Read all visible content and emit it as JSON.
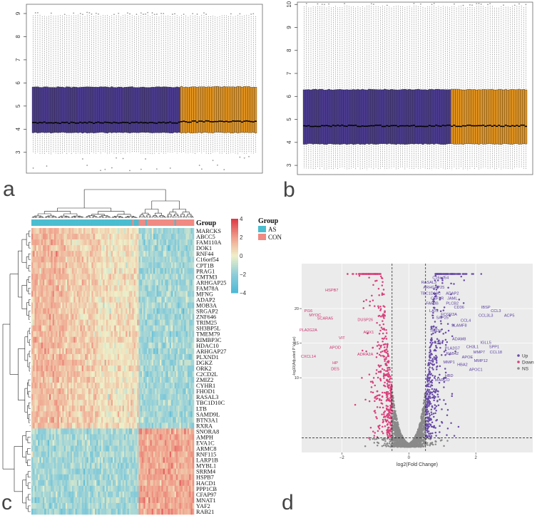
{
  "figure": {
    "panel_labels": {
      "a": "a",
      "b": "b",
      "c": "c",
      "d": "d"
    }
  },
  "chart_data": [
    {
      "id": "a",
      "type": "boxplot",
      "title": "",
      "ylim": [
        2.1,
        9.4
      ],
      "yticks": [
        3,
        4,
        5,
        6,
        7,
        8,
        9
      ],
      "groups": [
        {
          "name": "AS",
          "color": "#4a3a8c",
          "n_samples": 66,
          "median": 4.28,
          "q1": 3.85,
          "q3": 5.82,
          "whisker_low": 2.95,
          "whisker_high": 8.9
        },
        {
          "name": "CON",
          "color": "#e0921f",
          "n_samples": 34,
          "median": 4.33,
          "q1": 3.85,
          "q3": 5.83,
          "whisker_low": 2.95,
          "whisker_high": 8.9
        }
      ]
    },
    {
      "id": "b",
      "type": "boxplot",
      "title": "",
      "ylim": [
        2.6,
        10.1
      ],
      "yticks": [
        3,
        4,
        5,
        6,
        7,
        8,
        9,
        10
      ],
      "groups": [
        {
          "name": "AS",
          "color": "#4a3a8c",
          "n_samples": 66,
          "median": 4.72,
          "q1": 3.93,
          "q3": 6.3,
          "whisker_low": 2.85,
          "whisker_high": 9.9
        },
        {
          "name": "CON",
          "color": "#e0921f",
          "n_samples": 34,
          "median": 4.72,
          "q1": 3.93,
          "q3": 6.3,
          "whisker_low": 2.85,
          "whisker_high": 9.9
        }
      ]
    },
    {
      "id": "c",
      "type": "heatmap",
      "legend_title": "Group",
      "annotation_label": "Group",
      "groups": [
        {
          "name": "AS",
          "color": "#4bbdd0"
        },
        {
          "name": "CON",
          "color": "#f08a82"
        }
      ],
      "n_as": 66,
      "n_con": 34,
      "colorbar_ticks": [
        4,
        2,
        0,
        -2,
        -4
      ],
      "colorbar_range": [
        -4,
        4
      ],
      "rows_up_in_as": [
        "MARCKS",
        "ABCC5",
        "FAM110A",
        "DOK1",
        "RNF44",
        "C16orf54",
        "CPT1B",
        "PRAG1",
        "CMTM3",
        "ARHGAP25",
        "FAM78A",
        "MFNG",
        "ADAP2",
        "MOB3A",
        "SRGAP2",
        "ZNF646",
        "TRIM25",
        "SH3BP5L",
        "TMEM79",
        "RIMBP3C",
        "HDAC10",
        "ARHGAP27",
        "PLXND1",
        "DGKZ",
        "ORK2",
        "C2CD2L",
        "ZMIZ2",
        "CYHR1",
        "FHOD1",
        "RASAL3",
        "TBC1D10C",
        "LTB",
        "SAMD9L",
        "BTN3A1",
        "RXRA"
      ],
      "rows_down_in_as": [
        "SNORA8",
        "AMPH",
        "EVA1C",
        "ARMC8",
        "RNF115",
        "LARP1B",
        "MYBL1",
        "SRRM4",
        "HSPB7",
        "HACD1",
        "PPP1CB",
        "CFAP97",
        "MNAT1",
        "YAF2",
        "RAB21"
      ]
    },
    {
      "id": "d",
      "type": "scatter",
      "subtype": "volcano",
      "xlabel": "log2(Fold Change)",
      "ylabel": "-log10(Adjusted P Value)",
      "xlim": [
        -3.2,
        3.7
      ],
      "ylim": [
        -0.8,
        26.5
      ],
      "xticks": [
        -2,
        0,
        2
      ],
      "yticks": [
        10,
        15,
        20
      ],
      "fc_cutoff": [
        -0.5,
        0.5
      ],
      "p_cutoff": 1.3,
      "legend": [
        {
          "name": "Up",
          "color": "#6a4ca8"
        },
        {
          "name": "Down",
          "color": "#d8407a"
        },
        {
          "name": "NS",
          "color": "#8a8a8a"
        }
      ],
      "labels_up": [
        {
          "text": "C16orf54",
          "x": 0.95,
          "y": 24.3
        },
        {
          "text": "RASAL3",
          "x": 0.6,
          "y": 23.6
        },
        {
          "text": "ARHGAP25",
          "x": 0.75,
          "y": 22.9
        },
        {
          "text": "TBC1D10C",
          "x": 0.65,
          "y": 22.0
        },
        {
          "text": "ADAP2",
          "x": 1.3,
          "y": 22.0
        },
        {
          "text": "CSF1R",
          "x": 0.85,
          "y": 21.3
        },
        {
          "text": "JAML",
          "x": 1.3,
          "y": 21.3
        },
        {
          "text": "FAP3B",
          "x": 0.7,
          "y": 20.6
        },
        {
          "text": "PLCB2",
          "x": 1.3,
          "y": 20.6
        },
        {
          "text": "CD36",
          "x": 1.5,
          "y": 20.0
        },
        {
          "text": "IBSP",
          "x": 2.3,
          "y": 20.0
        },
        {
          "text": "CCL3",
          "x": 2.6,
          "y": 19.5
        },
        {
          "text": "LAT2",
          "x": 0.75,
          "y": 19.5
        },
        {
          "text": "ACP5",
          "x": 3.0,
          "y": 18.8
        },
        {
          "text": "CCL3L3",
          "x": 2.3,
          "y": 18.8
        },
        {
          "text": "FCGR3A",
          "x": 1.2,
          "y": 19.0
        },
        {
          "text": "SAP25",
          "x": 1.0,
          "y": 18.5
        },
        {
          "text": "CCL4",
          "x": 1.7,
          "y": 18.1
        },
        {
          "text": "SLAMF8",
          "x": 1.5,
          "y": 17.4
        },
        {
          "text": "STK",
          "x": 0.75,
          "y": 17.0
        },
        {
          "text": "TMEM",
          "x": 0.8,
          "y": 16.6
        },
        {
          "text": "ADAM8",
          "x": 1.5,
          "y": 15.4
        },
        {
          "text": "IL4I1",
          "x": 0.9,
          "y": 14.9
        },
        {
          "text": "IGLL5",
          "x": 2.3,
          "y": 14.9
        },
        {
          "text": "CH3L1",
          "x": 1.9,
          "y": 14.3
        },
        {
          "text": "SPP1",
          "x": 2.55,
          "y": 14.3
        },
        {
          "text": "PLA2G7",
          "x": 1.3,
          "y": 14.1
        },
        {
          "text": "MMP7",
          "x": 2.1,
          "y": 13.5
        },
        {
          "text": "CCL18",
          "x": 2.6,
          "y": 13.5
        },
        {
          "text": "RAB42",
          "x": 1.3,
          "y": 13.3
        },
        {
          "text": "APOE",
          "x": 1.75,
          "y": 12.8
        },
        {
          "text": "MMP12",
          "x": 2.15,
          "y": 12.3
        },
        {
          "text": "MMP1",
          "x": 1.2,
          "y": 12.1
        },
        {
          "text": "HBA2",
          "x": 1.6,
          "y": 11.7
        },
        {
          "text": "APOC1",
          "x": 2.0,
          "y": 11.0
        },
        {
          "text": "HBD",
          "x": 1.2,
          "y": 10.1
        },
        {
          "text": "MARCO",
          "x": 1.0,
          "y": 9.5
        }
      ],
      "labels_down": [
        {
          "text": "HSPB7",
          "x": -2.3,
          "y": 22.5
        },
        {
          "text": "PI16",
          "x": -3.0,
          "y": 19.5
        },
        {
          "text": "MYOC",
          "x": -2.8,
          "y": 18.9
        },
        {
          "text": "SCARA5",
          "x": -2.5,
          "y": 18.4
        },
        {
          "text": "DUSP26",
          "x": -1.3,
          "y": 18.2
        },
        {
          "text": "PLA2G2A",
          "x": -3.0,
          "y": 16.7
        },
        {
          "text": "AOX1",
          "x": -1.2,
          "y": 16.4
        },
        {
          "text": "VIT",
          "x": -2.0,
          "y": 15.6
        },
        {
          "text": "APOD",
          "x": -2.2,
          "y": 14.2
        },
        {
          "text": "ADRA2A",
          "x": -1.3,
          "y": 13.2
        },
        {
          "text": "CXCL14",
          "x": -3.0,
          "y": 12.9
        },
        {
          "text": "HP",
          "x": -2.2,
          "y": 12.0
        },
        {
          "text": "DES",
          "x": -2.2,
          "y": 11.1
        }
      ]
    }
  ]
}
